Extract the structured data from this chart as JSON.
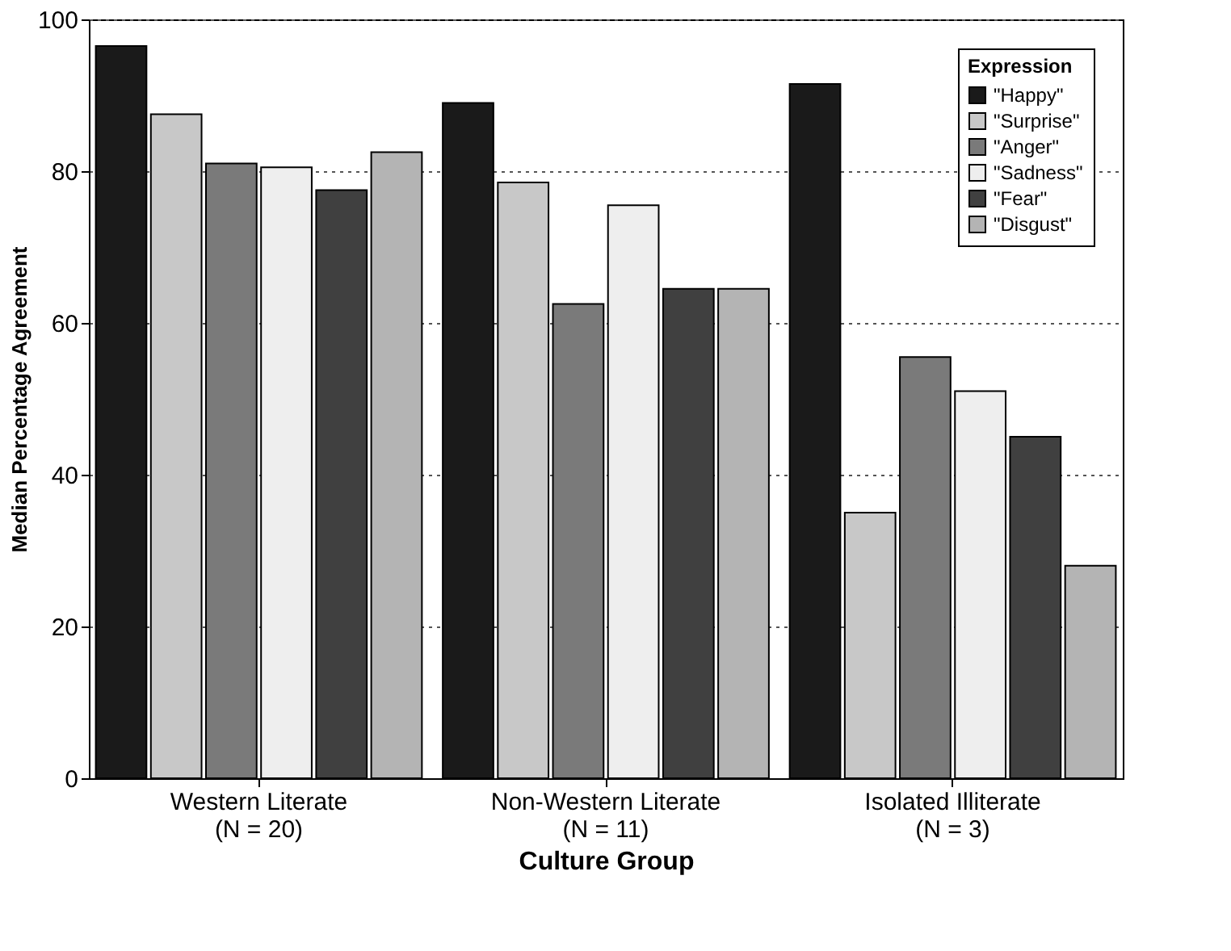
{
  "chart_data": {
    "type": "bar",
    "xlabel": "Culture Group",
    "ylabel": "Median Percentage Agreement",
    "legend_title": "Expression",
    "categories": [
      "Western Literate\n(N = 20)",
      "Non-Western Literate\n(N = 11)",
      "Isolated Illiterate\n(N = 3)"
    ],
    "series": [
      {
        "name": "\"Happy\"",
        "color": "#1a1a1a",
        "values": [
          96.5,
          89,
          91.5
        ]
      },
      {
        "name": "\"Surprise\"",
        "color": "#c8c8c8",
        "values": [
          87.5,
          78.5,
          35
        ]
      },
      {
        "name": "\"Anger\"",
        "color": "#7a7a7a",
        "values": [
          81,
          62.5,
          55.5
        ]
      },
      {
        "name": "\"Sadness\"",
        "color": "#eeeeee",
        "values": [
          80.5,
          75.5,
          51
        ]
      },
      {
        "name": "\"Fear\"",
        "color": "#404040",
        "values": [
          77.5,
          64.5,
          45
        ]
      },
      {
        "name": "\"Disgust\"",
        "color": "#b4b4b4",
        "values": [
          82.5,
          64.5,
          28
        ]
      }
    ],
    "ylim": [
      0,
      100
    ],
    "yticks": [
      0,
      20,
      40,
      60,
      80,
      100
    ],
    "grid": "y",
    "legend": "top right"
  }
}
